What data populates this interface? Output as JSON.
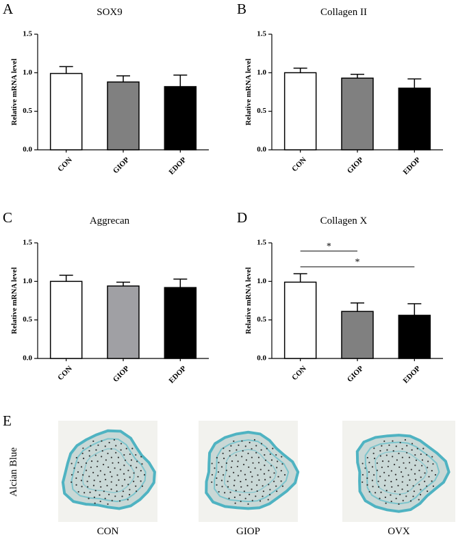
{
  "chart_data": [
    {
      "type": "bar",
      "panel_label": "A",
      "title": "SOX9",
      "y_label": "Relative mRNA level",
      "categories": [
        "CON",
        "GIOP",
        "EDOP"
      ],
      "values": [
        0.99,
        0.88,
        0.82
      ],
      "errors": [
        0.09,
        0.08,
        0.15
      ],
      "colors": [
        "#ffffff",
        "#808080",
        "#000000"
      ],
      "ylim": [
        0,
        1.5
      ],
      "yticks": [
        {
          "value": 0,
          "label": "0.0"
        },
        {
          "value": 0.5,
          "label": "0.5"
        },
        {
          "value": 1,
          "label": "1.0"
        },
        {
          "value": 1.5,
          "label": "1.5"
        }
      ]
    },
    {
      "type": "bar",
      "panel_label": "B",
      "title": "Collagen II",
      "y_label": "Relative mRNA level",
      "categories": [
        "CON",
        "GIOP",
        "EDOP"
      ],
      "values": [
        1.0,
        0.93,
        0.8
      ],
      "errors": [
        0.06,
        0.05,
        0.12
      ],
      "colors": [
        "#ffffff",
        "#808080",
        "#000000"
      ],
      "ylim": [
        0,
        1.5
      ],
      "yticks": [
        {
          "value": 0,
          "label": "0.0"
        },
        {
          "value": 0.5,
          "label": "0.5"
        },
        {
          "value": 1,
          "label": "1.0"
        },
        {
          "value": 1.5,
          "label": "1.5"
        }
      ]
    },
    {
      "type": "bar",
      "panel_label": "C",
      "title": "Aggrecan",
      "y_label": "Relative mRNA level",
      "categories": [
        "CON",
        "GIOP",
        "EDOP"
      ],
      "values": [
        1.0,
        0.94,
        0.92
      ],
      "errors": [
        0.08,
        0.05,
        0.11
      ],
      "colors": [
        "#ffffff",
        "#a0a0a4",
        "#000000"
      ],
      "ylim": [
        0,
        1.5
      ],
      "yticks": [
        {
          "value": 0,
          "label": "0.0"
        },
        {
          "value": 0.5,
          "label": "0.5"
        },
        {
          "value": 1,
          "label": "1.0"
        },
        {
          "value": 1.5,
          "label": "1.5"
        }
      ]
    },
    {
      "type": "bar",
      "panel_label": "D",
      "title": "Collagen X",
      "y_label": "Relative mRNA level",
      "categories": [
        "CON",
        "GIOP",
        "EDOP"
      ],
      "values": [
        0.99,
        0.61,
        0.56
      ],
      "errors": [
        0.11,
        0.11,
        0.15
      ],
      "colors": [
        "#ffffff",
        "#808080",
        "#000000"
      ],
      "ylim": [
        0,
        1.5
      ],
      "yticks": [
        {
          "value": 0,
          "label": "0.0"
        },
        {
          "value": 0.5,
          "label": "0.5"
        },
        {
          "value": 1,
          "label": "1.0"
        },
        {
          "value": 1.5,
          "label": "1.5"
        }
      ],
      "significance": [
        {
          "label": "*",
          "pair": [
            "CON",
            "GIOP"
          ]
        },
        {
          "label": "*",
          "pair": [
            "CON",
            "EDOP"
          ]
        }
      ]
    }
  ],
  "panel_e": {
    "panel_label": "E",
    "stain": "Alcian Blue",
    "images": [
      "CON",
      "GIOP",
      "OVX"
    ]
  }
}
